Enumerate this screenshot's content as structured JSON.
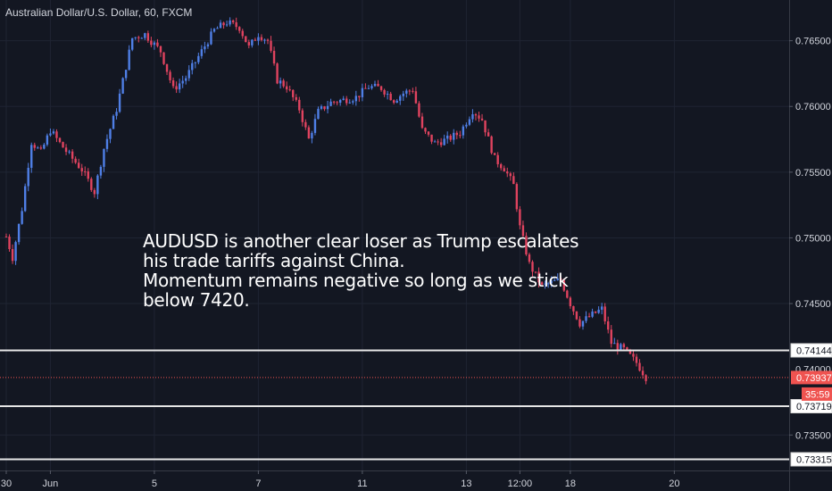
{
  "chart_data": {
    "type": "candlestick",
    "title": "Australian Dollar/U.S. Dollar, 60, FXCM",
    "colors": {
      "background": "#131722",
      "grid": "#1f2433",
      "up": "#4f7fe6",
      "down": "#e0435f",
      "axis_text": "#d1d4dc",
      "hline": "#e6e6e6",
      "current_price": "#ef5350"
    },
    "y_axis": {
      "ylim": [
        0.7323,
        0.7681
      ],
      "ticks": [
        "0.76500",
        "0.76000",
        "0.75500",
        "0.75000",
        "0.74500",
        "0.73500"
      ],
      "tick_values": [
        0.765,
        0.76,
        0.755,
        0.75,
        0.745,
        0.735
      ],
      "partial_tick": "0.74000",
      "partial_tick_value": 0.74
    },
    "x_axis": {
      "labels": [
        "30",
        "Jun",
        "5",
        "7",
        "11",
        "13",
        "12:00",
        "18",
        "20"
      ],
      "positions": [
        0,
        14,
        47,
        80,
        113,
        146,
        163,
        179,
        212
      ]
    },
    "price_path": [
      [
        0,
        0.7501
      ],
      [
        2,
        0.7485
      ],
      [
        5,
        0.7522
      ],
      [
        8,
        0.7573
      ],
      [
        11,
        0.7565
      ],
      [
        14,
        0.7582
      ],
      [
        17,
        0.7572
      ],
      [
        20,
        0.7563
      ],
      [
        24,
        0.7552
      ],
      [
        28,
        0.7535
      ],
      [
        31,
        0.7568
      ],
      [
        35,
        0.7598
      ],
      [
        40,
        0.7652
      ],
      [
        44,
        0.7655
      ],
      [
        49,
        0.7642
      ],
      [
        53,
        0.7613
      ],
      [
        57,
        0.7622
      ],
      [
        62,
        0.7642
      ],
      [
        66,
        0.7658
      ],
      [
        70,
        0.7664
      ],
      [
        74,
        0.766
      ],
      [
        77,
        0.7645
      ],
      [
        80,
        0.7655
      ],
      [
        83,
        0.765
      ],
      [
        86,
        0.762
      ],
      [
        89,
        0.7615
      ],
      [
        93,
        0.7598
      ],
      [
        96,
        0.7575
      ],
      [
        99,
        0.7596
      ],
      [
        103,
        0.7603
      ],
      [
        107,
        0.7605
      ],
      [
        111,
        0.7607
      ],
      [
        115,
        0.7615
      ],
      [
        119,
        0.7614
      ],
      [
        123,
        0.7605
      ],
      [
        126,
        0.761
      ],
      [
        129,
        0.7613
      ],
      [
        132,
        0.7582
      ],
      [
        136,
        0.7572
      ],
      [
        140,
        0.7575
      ],
      [
        144,
        0.758
      ],
      [
        148,
        0.7597
      ],
      [
        151,
        0.759
      ],
      [
        153,
        0.7575
      ],
      [
        155,
        0.756
      ],
      [
        158,
        0.7553
      ],
      [
        161,
        0.754
      ],
      [
        163,
        0.7508
      ],
      [
        166,
        0.748
      ],
      [
        170,
        0.7463
      ],
      [
        173,
        0.7466
      ],
      [
        176,
        0.7468
      ],
      [
        179,
        0.745
      ],
      [
        182,
        0.7435
      ],
      [
        185,
        0.744
      ],
      [
        189,
        0.7446
      ],
      [
        192,
        0.742
      ],
      [
        196,
        0.7415
      ],
      [
        200,
        0.7405
      ],
      [
        203,
        0.7394
      ]
    ],
    "horizontal_lines": [
      {
        "value": 0.74144,
        "label": "0.74144"
      },
      {
        "value": 0.73719,
        "label": "0.73719"
      },
      {
        "value": 0.73315,
        "label": "0.73315"
      }
    ],
    "current_price": {
      "value": 0.73937,
      "label": "0.73937",
      "countdown": "35:59"
    },
    "annotation": [
      "AUDUSD is another clear loser as Trump escalates",
      "his trade tariffs against China.",
      "Momentum remains negative so long as we stick",
      "below 7420."
    ]
  }
}
